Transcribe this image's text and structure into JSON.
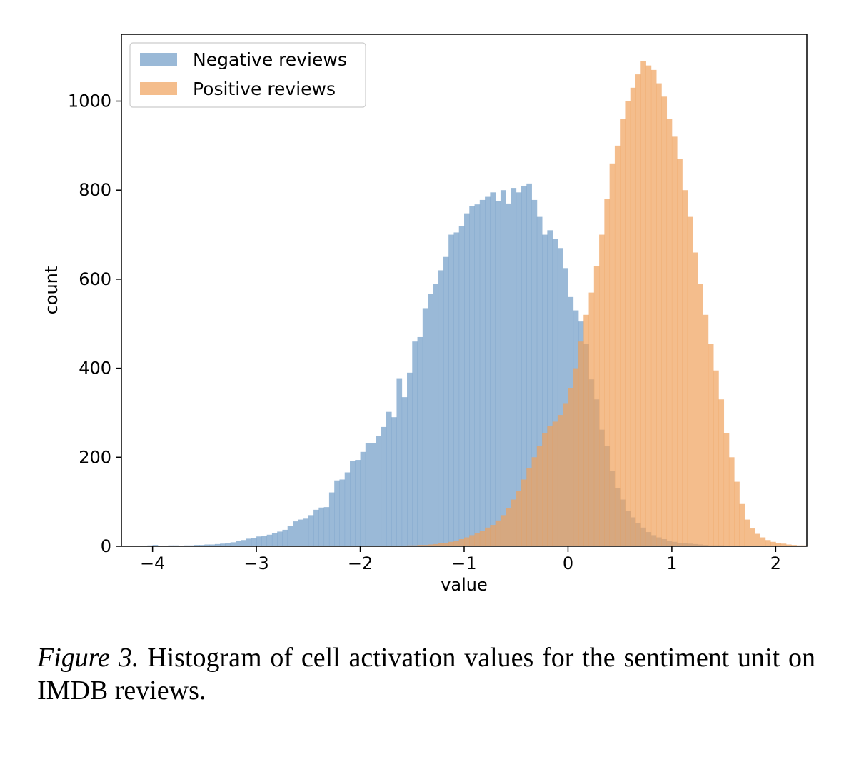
{
  "chart_data": {
    "type": "bar",
    "subtype": "overlapping-histogram",
    "xlabel": "value",
    "ylabel": "count",
    "xlim": [
      -4.3,
      2.3
    ],
    "ylim": [
      0,
      1150
    ],
    "xticks": [
      -4,
      -3,
      -2,
      -1,
      0,
      1,
      2
    ],
    "xtick_labels": [
      "−4",
      "−3",
      "−2",
      "−1",
      "0",
      "1",
      "2"
    ],
    "yticks": [
      0,
      200,
      400,
      600,
      800,
      1000
    ],
    "ytick_labels": [
      "0",
      "200",
      "400",
      "600",
      "800",
      "1000"
    ],
    "grid": false,
    "legend_position": "top-left",
    "bin_width": 0.05,
    "series": [
      {
        "name": "Negative reviews",
        "color": "#6f9bc6",
        "alpha": 0.7,
        "start": -4.05,
        "counts": [
          2,
          3,
          1,
          1,
          2,
          2,
          1,
          2,
          2,
          3,
          3,
          4,
          4,
          5,
          6,
          7,
          9,
          12,
          14,
          17,
          19,
          22,
          24,
          26,
          29,
          33,
          37,
          46,
          56,
          60,
          62,
          70,
          82,
          87,
          88,
          121,
          148,
          150,
          166,
          191,
          194,
          212,
          232,
          232,
          247,
          268,
          302,
          290,
          376,
          335,
          390,
          460,
          470,
          535,
          567,
          590,
          620,
          650,
          700,
          705,
          720,
          748,
          765,
          768,
          778,
          785,
          795,
          775,
          800,
          770,
          805,
          795,
          810,
          815,
          778,
          740,
          700,
          710,
          690,
          670,
          625,
          560,
          530,
          505,
          455,
          375,
          330,
          262,
          225,
          170,
          130,
          105,
          80,
          65,
          52,
          42,
          32,
          25,
          20,
          16,
          12,
          10,
          8,
          7,
          6,
          5,
          4,
          3,
          2,
          2,
          2,
          1,
          1,
          1,
          1,
          1,
          0,
          0,
          0,
          0,
          0,
          0,
          0,
          0,
          0,
          0,
          0,
          0,
          0,
          0,
          0,
          0
        ]
      },
      {
        "name": "Positive reviews",
        "color": "#f0a15b",
        "alpha": 0.7,
        "start": -4.05,
        "counts": [
          0,
          0,
          0,
          0,
          0,
          0,
          0,
          0,
          0,
          0,
          0,
          0,
          0,
          0,
          0,
          0,
          0,
          0,
          0,
          0,
          0,
          0,
          0,
          0,
          0,
          0,
          0,
          0,
          0,
          0,
          0,
          0,
          0,
          0,
          0,
          0,
          0,
          0,
          0,
          0,
          0,
          0,
          0,
          0,
          0,
          0,
          0,
          1,
          1,
          1,
          2,
          2,
          3,
          3,
          4,
          5,
          7,
          8,
          10,
          12,
          16,
          20,
          25,
          30,
          35,
          42,
          48,
          58,
          70,
          85,
          105,
          125,
          150,
          175,
          200,
          225,
          255,
          270,
          280,
          295,
          320,
          355,
          400,
          460,
          520,
          570,
          630,
          700,
          780,
          860,
          900,
          960,
          1000,
          1030,
          1060,
          1090,
          1080,
          1070,
          1040,
          1010,
          960,
          920,
          870,
          800,
          740,
          660,
          590,
          520,
          455,
          395,
          330,
          255,
          200,
          145,
          95,
          60,
          40,
          28,
          20,
          14,
          10,
          8,
          6,
          4,
          3,
          2,
          2,
          1,
          1,
          1,
          1,
          1,
          0,
          0,
          0,
          1
        ]
      }
    ]
  },
  "caption": {
    "label": "Figure 3.",
    "text": " Histogram of cell activation values for the sentiment unit on IMDB reviews."
  }
}
